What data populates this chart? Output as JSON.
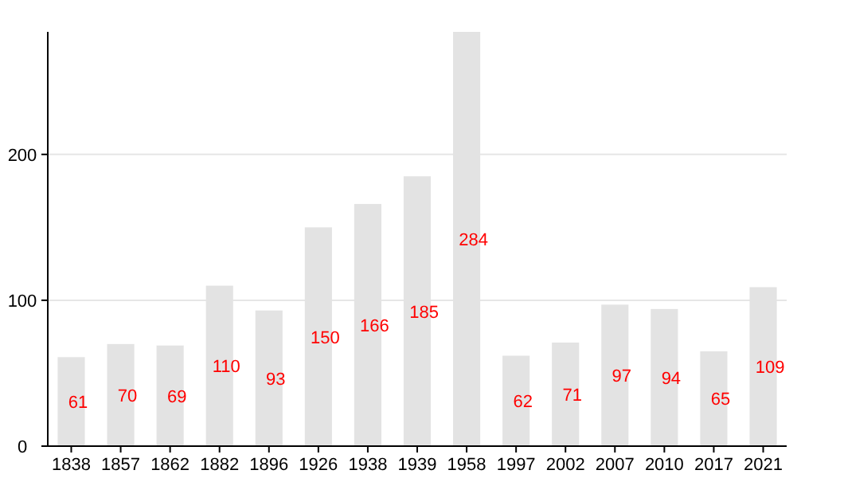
{
  "chart_data": {
    "type": "bar",
    "categories": [
      "1838",
      "1857",
      "1862",
      "1882",
      "1896",
      "1926",
      "1938",
      "1939",
      "1958",
      "1997",
      "2002",
      "2007",
      "2010",
      "2017",
      "2021"
    ],
    "values": [
      61,
      70,
      69,
      110,
      93,
      150,
      166,
      185,
      284,
      62,
      71,
      97,
      94,
      65,
      109
    ],
    "color": "#e3e3e3",
    "ylim": [
      0,
      284
    ],
    "yticks": [
      0,
      100,
      200
    ],
    "grid": "y",
    "data_labels": true
  }
}
